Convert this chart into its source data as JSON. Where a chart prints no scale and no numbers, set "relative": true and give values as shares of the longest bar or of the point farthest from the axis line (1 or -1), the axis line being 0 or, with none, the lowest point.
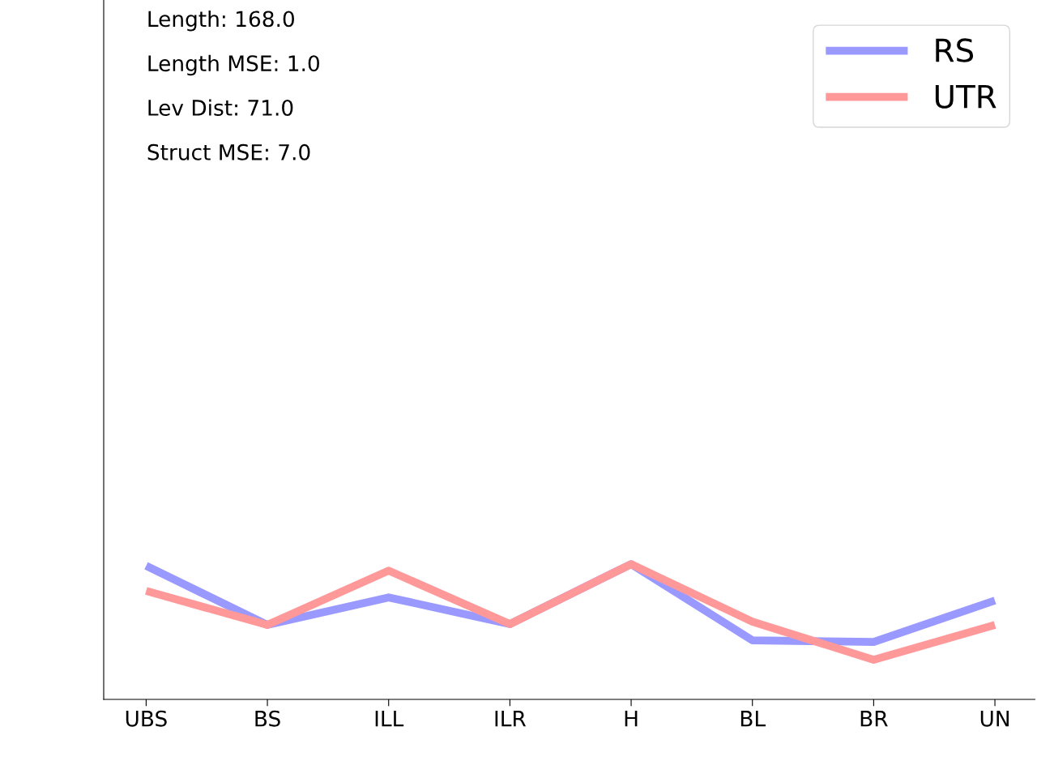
{
  "chart_data": {
    "type": "line",
    "relative": true,
    "categories": [
      "UBS",
      "BS",
      "ILL",
      "ILR",
      "H",
      "BL",
      "BR",
      "UN"
    ],
    "series": [
      {
        "name": "RS",
        "color": "#9999ff",
        "values": [
          0.988,
          0.551,
          0.754,
          0.557,
          1.0,
          0.437,
          0.425,
          0.731
        ]
      },
      {
        "name": "UTR",
        "color": "#ff9999",
        "values": [
          0.802,
          0.551,
          0.952,
          0.557,
          1.0,
          0.575,
          0.293,
          0.551
        ]
      }
    ],
    "annotations": [
      "Length: 168.0",
      "Length MSE: 1.0",
      "Lev Dist: 71.0",
      "Struct MSE: 7.0"
    ],
    "legend": "top right",
    "grid": false,
    "marker": "none",
    "line_style": "solid"
  }
}
